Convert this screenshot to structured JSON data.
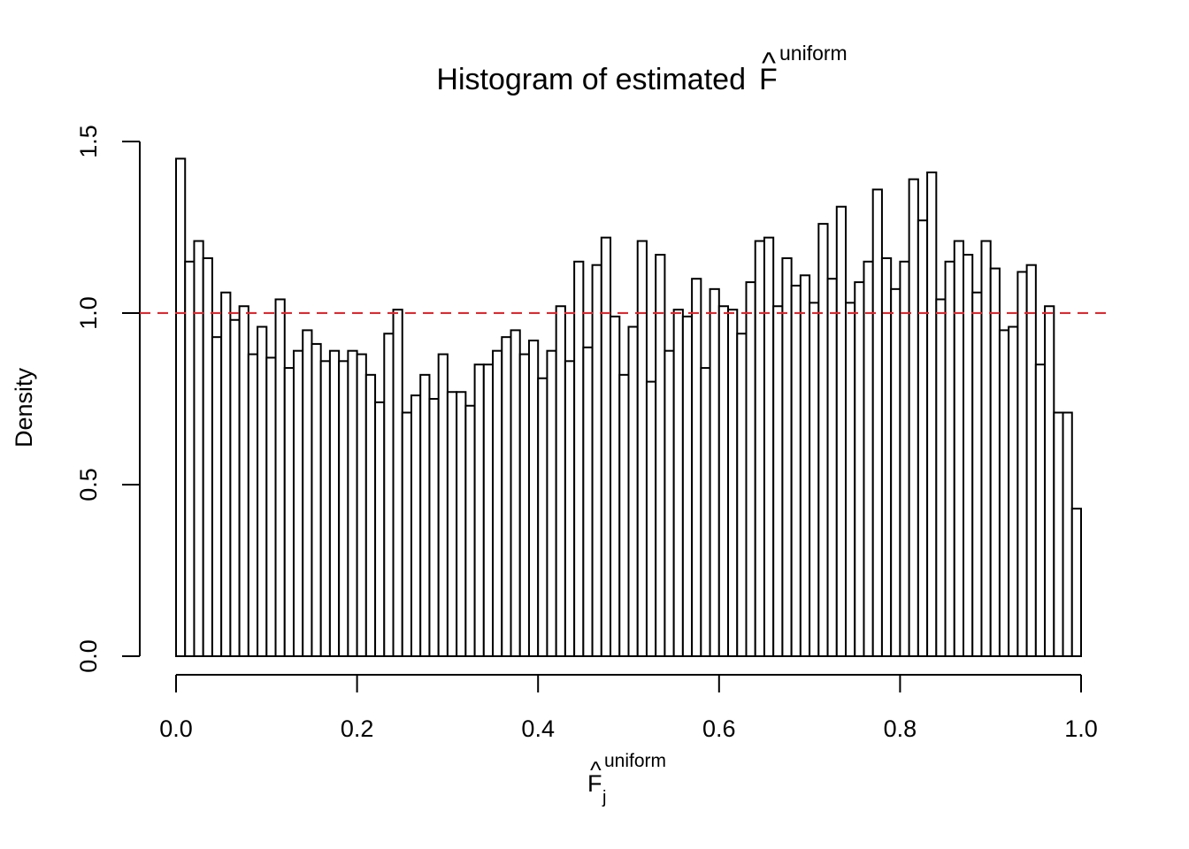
{
  "chart_data": {
    "type": "bar",
    "title": {
      "main": "Histogram of estimated ",
      "symbol": "F",
      "hat": "^",
      "superscript": "uniform"
    },
    "xlabel": {
      "symbol": "F",
      "hat": "^",
      "superscript": "uniform",
      "subscript": "j"
    },
    "ylabel": "Density",
    "xlim": [
      0.0,
      1.0
    ],
    "ylim": [
      0.0,
      1.5
    ],
    "x_ticks": [
      {
        "value": 0.0,
        "label": "0.0"
      },
      {
        "value": 0.2,
        "label": "0.2"
      },
      {
        "value": 0.4,
        "label": "0.4"
      },
      {
        "value": 0.6,
        "label": "0.6"
      },
      {
        "value": 0.8,
        "label": "0.8"
      },
      {
        "value": 1.0,
        "label": "1.0"
      }
    ],
    "y_ticks": [
      {
        "value": 0.0,
        "label": "0.0"
      },
      {
        "value": 0.5,
        "label": "0.5"
      },
      {
        "value": 1.0,
        "label": "1.0"
      },
      {
        "value": 1.5,
        "label": "1.5"
      }
    ],
    "bin_width": 0.01,
    "bin_start": 0.0,
    "values": [
      1.45,
      1.15,
      1.21,
      1.16,
      0.93,
      1.06,
      0.98,
      1.02,
      0.88,
      0.96,
      0.87,
      1.04,
      0.84,
      0.89,
      0.95,
      0.91,
      0.86,
      0.89,
      0.86,
      0.89,
      0.88,
      0.82,
      0.74,
      0.94,
      1.01,
      0.71,
      0.76,
      0.82,
      0.75,
      0.88,
      0.77,
      0.77,
      0.73,
      0.85,
      0.85,
      0.89,
      0.93,
      0.95,
      0.88,
      0.92,
      0.81,
      0.89,
      1.02,
      0.86,
      1.15,
      0.9,
      1.14,
      1.22,
      0.99,
      0.82,
      0.96,
      1.21,
      0.8,
      1.17,
      0.89,
      1.01,
      0.99,
      1.1,
      0.84,
      1.07,
      1.02,
      1.01,
      0.94,
      1.09,
      1.21,
      1.22,
      1.02,
      1.16,
      1.08,
      1.11,
      1.03,
      1.26,
      1.1,
      1.31,
      1.03,
      1.09,
      1.15,
      1.36,
      1.16,
      1.07,
      1.15,
      1.39,
      1.27,
      1.41,
      1.04,
      1.15,
      1.21,
      1.17,
      1.06,
      1.21,
      1.13,
      0.95,
      0.96,
      1.12,
      1.14,
      0.85,
      1.02,
      0.71,
      0.71,
      0.43
    ],
    "reference_line": {
      "y": 1.0,
      "color": "#e8232a",
      "style": "dashed"
    },
    "bar_fill": "#ffffff",
    "bar_stroke": "#000000",
    "grid": false,
    "legend": "none"
  }
}
